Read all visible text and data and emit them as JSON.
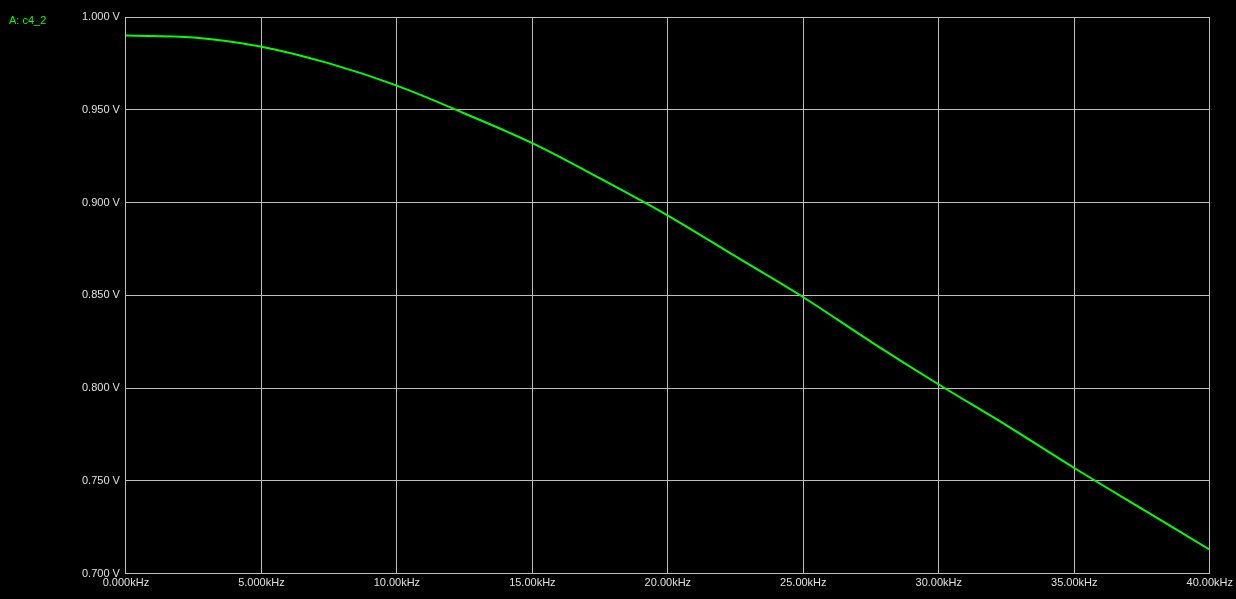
{
  "chart_data": {
    "type": "line",
    "legend": "top left",
    "grid": true,
    "marker": "none",
    "line_style": "solid",
    "x": [
      0,
      2.5,
      5,
      7.5,
      10,
      12.5,
      15,
      17.5,
      20,
      22.5,
      25,
      27.5,
      30,
      32.5,
      35,
      37.5,
      40
    ],
    "series": [
      {
        "name": "A: c4_2",
        "color": "#00ff00",
        "values": [
          0.99,
          0.989,
          0.984,
          0.975,
          0.963,
          0.948,
          0.932,
          0.913,
          0.893,
          0.871,
          0.849,
          0.825,
          0.802,
          0.78,
          0.757,
          0.735,
          0.713
        ]
      }
    ],
    "xlim": [
      0,
      40
    ],
    "xticks": [
      {
        "value": 0,
        "label": "0.000kHz"
      },
      {
        "value": 5,
        "label": "5.000kHz"
      },
      {
        "value": 10,
        "label": "10.00kHz"
      },
      {
        "value": 15,
        "label": "15.00kHz"
      },
      {
        "value": 20,
        "label": "20.00kHz"
      },
      {
        "value": 25,
        "label": "25.00kHz"
      },
      {
        "value": 30,
        "label": "30.00kHz"
      },
      {
        "value": 35,
        "label": "35.00kHz"
      },
      {
        "value": 40,
        "label": "40.00kHz"
      }
    ],
    "ylim": [
      0.7,
      1.0
    ],
    "yticks": [
      {
        "value": 0.7,
        "label": "0.700 V"
      },
      {
        "value": 0.75,
        "label": "0.750 V"
      },
      {
        "value": 0.8,
        "label": "0.800 V"
      },
      {
        "value": 0.85,
        "label": "0.850 V"
      },
      {
        "value": 0.9,
        "label": "0.900 V"
      },
      {
        "value": 0.95,
        "label": "0.950 V"
      },
      {
        "value": 1.0,
        "label": "1.000 V"
      }
    ]
  }
}
